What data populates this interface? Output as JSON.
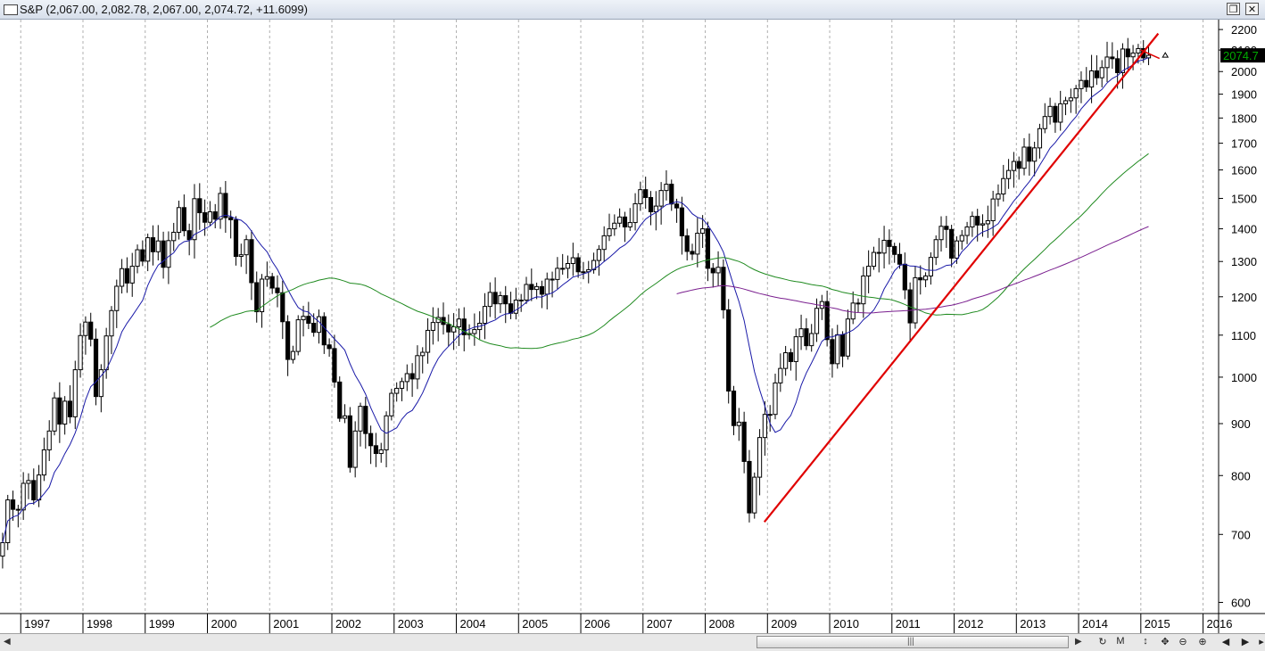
{
  "window": {
    "title": "S&P (2,067.00, 2,082.78, 2,067.00, 2,074.72, +11.6099)"
  },
  "toolbar_icons": [
    "zoom-reset-icon",
    "monthly-period-icon",
    "vertical-scale-icon",
    "pan-icon",
    "zoom-out-icon",
    "zoom-in-icon",
    "scroll-left-icon",
    "scroll-right-icon",
    "more-icon"
  ],
  "toolbar_labels": [
    "↻",
    "M",
    "↕",
    "✥",
    "⊖",
    "⊕",
    "◀",
    "▶",
    "▸"
  ],
  "colors": {
    "up_candle": "#ffffff",
    "down_candle": "#000000",
    "ma_short": "#1a1aa8",
    "ma_medium": "#1f8a1f",
    "ma_long": "#7a1f8f",
    "trendline": "#e00000",
    "price_badge": "#00aa00"
  },
  "chart_data": {
    "type": "candlestick",
    "scale": "log",
    "ylim": [
      585,
      2250
    ],
    "y_ticks": [
      600,
      700,
      800,
      900,
      1000,
      1100,
      1200,
      1300,
      1400,
      1500,
      1600,
      1700,
      1800,
      1900,
      2000,
      2100,
      2200
    ],
    "x_start": "1996-09",
    "x_end": "2016-04",
    "x_ticks": [
      "1997",
      "1998",
      "1999",
      "2000",
      "2001",
      "2002",
      "2003",
      "2004",
      "2005",
      "2006",
      "2007",
      "2008",
      "2009",
      "2010",
      "2011",
      "2012",
      "2013",
      "2014",
      "2015",
      "2016"
    ],
    "last_price_label": "2074.7",
    "last_price": 2074.72,
    "closes_start": "1996-09",
    "closes": [
      687,
      757,
      741,
      740,
      786,
      791,
      757,
      801,
      848,
      885,
      954,
      899,
      947,
      914,
      1017,
      1099,
      1133,
      1090,
      957,
      1017,
      1098,
      1163,
      1229,
      1279,
      1238,
      1286,
      1335,
      1301,
      1372,
      1329,
      1362,
      1283,
      1363,
      1389,
      1469,
      1394,
      1366,
      1499,
      1452,
      1421,
      1455,
      1431,
      1517,
      1436,
      1429,
      1315,
      1320,
      1366,
      1239,
      1160,
      1249,
      1256,
      1224,
      1211,
      1134,
      1041,
      1060,
      1139,
      1148,
      1130,
      1107,
      1147,
      1076,
      1067,
      989,
      911,
      916,
      815,
      885,
      936,
      880,
      856,
      841,
      848,
      916,
      964,
      975,
      990,
      1008,
      996,
      1050,
      1058,
      1112,
      1132,
      1145,
      1127,
      1108,
      1121,
      1141,
      1101,
      1104,
      1114,
      1130,
      1174,
      1212,
      1181,
      1203,
      1181,
      1156,
      1191,
      1191,
      1234,
      1220,
      1228,
      1207,
      1249,
      1248,
      1280,
      1280,
      1294,
      1311,
      1270,
      1270,
      1276,
      1303,
      1336,
      1378,
      1400,
      1418,
      1438,
      1406,
      1420,
      1482,
      1530,
      1503,
      1455,
      1474,
      1527,
      1549,
      1481,
      1468,
      1378,
      1330,
      1322,
      1386,
      1400,
      1280,
      1267,
      1283,
      1165,
      969,
      896,
      903,
      826,
      735,
      797,
      872,
      919,
      919,
      987,
      1020,
      1057,
      1036,
      1096,
      1116,
      1074,
      1104,
      1169,
      1187,
      1089,
      1031,
      1101,
      1049,
      1141,
      1183,
      1181,
      1258,
      1286,
      1327,
      1325,
      1364,
      1345,
      1321,
      1292,
      1219,
      1131,
      1253,
      1247,
      1258,
      1312,
      1366,
      1408,
      1398,
      1310,
      1362,
      1379,
      1406,
      1440,
      1412,
      1416,
      1426,
      1498,
      1515,
      1569,
      1598,
      1631,
      1606,
      1685,
      1632,
      1682,
      1757,
      1806,
      1848,
      1783,
      1859,
      1872,
      1884,
      1924,
      1960,
      1931,
      2003,
      1972,
      2018,
      2067,
      2059,
      1995,
      2105,
      2068,
      2086,
      2107,
      2063,
      2075
    ]
  }
}
